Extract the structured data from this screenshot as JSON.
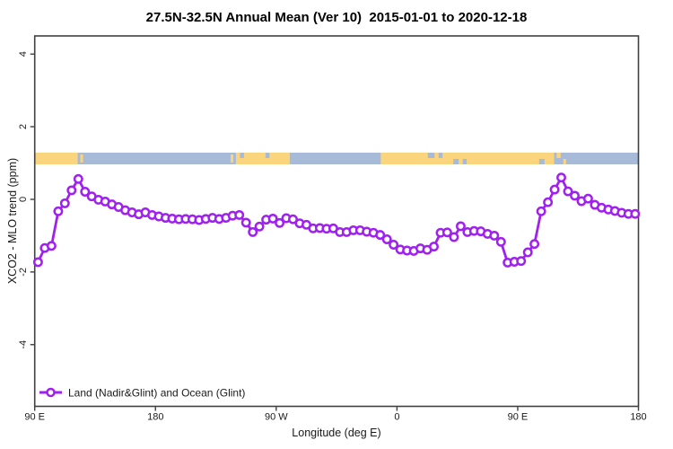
{
  "chart_data": {
    "type": "line",
    "title": "27.5N-32.5N Annual Mean (Ver 10)  2015-01-01 to 2020-12-18",
    "xlabel": "Longitude (deg E)",
    "ylabel": "XCO2 - MLO trend (ppm)",
    "grid": false,
    "axis_color": "#404040",
    "xlim": [
      90,
      540
    ],
    "ylim": [
      -5.7,
      4.5
    ],
    "x_ticks": [
      {
        "lon": 90,
        "label": "90 E"
      },
      {
        "lon": 180,
        "label": "180"
      },
      {
        "lon": 270,
        "label": "90 W"
      },
      {
        "lon": 360,
        "label": "0"
      },
      {
        "lon": 450,
        "label": "90 E"
      },
      {
        "lon": 540,
        "label": "180"
      }
    ],
    "y_ticks": [
      {
        "value": -4,
        "label": "-4"
      },
      {
        "value": -2,
        "label": "-2"
      },
      {
        "value": 0,
        "label": "0"
      },
      {
        "value": 2,
        "label": "2"
      },
      {
        "value": 4,
        "label": "4"
      }
    ],
    "map_strip": {
      "description": "land/ocean map band for latitude 27.5N-32.5N",
      "land_color": "#FBD57E",
      "ocean_color": "#A7BBD8",
      "y_value": 1.13,
      "segments": [
        {
          "from": 90,
          "to": 122,
          "type": "land"
        },
        {
          "from": 122,
          "to": 240,
          "type": "ocean"
        },
        {
          "from": 240,
          "to": 280,
          "type": "land"
        },
        {
          "from": 280,
          "to": 348,
          "type": "ocean"
        },
        {
          "from": 348,
          "to": 477,
          "type": "land"
        },
        {
          "from": 477,
          "to": 540,
          "type": "ocean"
        }
      ],
      "specks": [
        {
          "lon": 124,
          "w": 2,
          "type": "land",
          "band": "mid"
        },
        {
          "lon": 236,
          "w": 2,
          "type": "land",
          "band": "mid"
        },
        {
          "lon": 243,
          "w": 3,
          "type": "ocean",
          "band": "top"
        },
        {
          "lon": 262,
          "w": 3,
          "type": "ocean",
          "band": "top"
        },
        {
          "lon": 383,
          "w": 5,
          "type": "ocean",
          "band": "top"
        },
        {
          "lon": 391,
          "w": 3,
          "type": "ocean",
          "band": "top"
        },
        {
          "lon": 402,
          "w": 4,
          "type": "ocean",
          "band": "bottom"
        },
        {
          "lon": 409,
          "w": 3,
          "type": "ocean",
          "band": "bottom"
        },
        {
          "lon": 466,
          "w": 4,
          "type": "ocean",
          "band": "bottom"
        },
        {
          "lon": 479,
          "w": 3,
          "type": "land",
          "band": "top"
        },
        {
          "lon": 484,
          "w": 2,
          "type": "land",
          "band": "bottom"
        }
      ]
    },
    "series": [
      {
        "name": "Land (Nadir&Glint) and Ocean (Glint)",
        "color": "#A020F0",
        "marker": "open-circle",
        "x_start_lon": 92.5,
        "x_step_deg": 5,
        "values": [
          -1.73,
          -1.34,
          -1.28,
          -0.33,
          -0.11,
          0.25,
          0.56,
          0.21,
          0.08,
          -0.01,
          -0.06,
          -0.14,
          -0.21,
          -0.3,
          -0.36,
          -0.41,
          -0.36,
          -0.43,
          -0.47,
          -0.51,
          -0.53,
          -0.55,
          -0.54,
          -0.55,
          -0.57,
          -0.54,
          -0.51,
          -0.54,
          -0.51,
          -0.45,
          -0.43,
          -0.64,
          -0.9,
          -0.75,
          -0.56,
          -0.53,
          -0.65,
          -0.52,
          -0.55,
          -0.66,
          -0.7,
          -0.8,
          -0.79,
          -0.81,
          -0.8,
          -0.9,
          -0.9,
          -0.85,
          -0.85,
          -0.89,
          -0.92,
          -0.98,
          -1.1,
          -1.25,
          -1.38,
          -1.41,
          -1.42,
          -1.35,
          -1.39,
          -1.3,
          -0.92,
          -0.91,
          -1.04,
          -0.74,
          -0.9,
          -0.87,
          -0.88,
          -0.95,
          -1.0,
          -1.17,
          -1.74,
          -1.72,
          -1.7,
          -1.46,
          -1.23,
          -0.33,
          -0.08,
          0.27,
          0.6,
          0.22,
          0.1,
          -0.05,
          0.02,
          -0.15,
          -0.23,
          -0.28,
          -0.32,
          -0.37,
          -0.4,
          -0.4
        ]
      }
    ],
    "legend": {
      "position": "bottom-left-inside"
    }
  }
}
